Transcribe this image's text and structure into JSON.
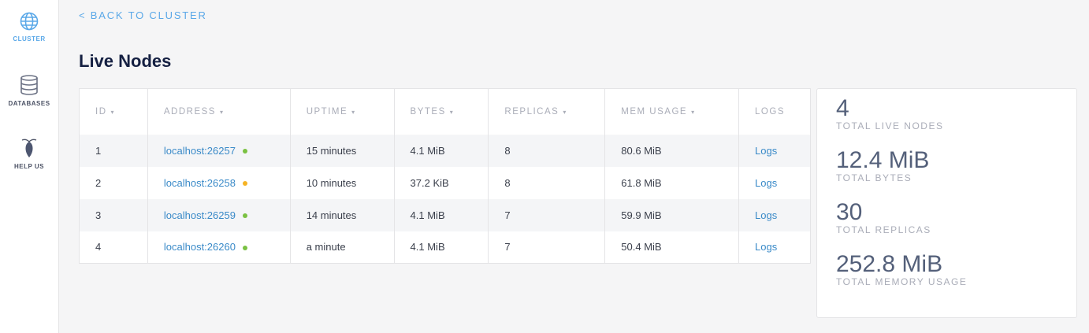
{
  "sidebar": {
    "items": [
      {
        "label": "CLUSTER",
        "icon": "globe-icon"
      },
      {
        "label": "DATABASES",
        "icon": "database-icon"
      },
      {
        "label": "HELP US",
        "icon": "cockroach-icon"
      }
    ]
  },
  "back_link": "< BACK TO CLUSTER",
  "title": "Live Nodes",
  "table": {
    "headers": [
      "ID",
      "ADDRESS",
      "UPTIME",
      "BYTES",
      "REPLICAS",
      "MEM USAGE",
      "LOGS"
    ],
    "sort_caret": "▾",
    "rows": [
      {
        "id": "1",
        "address": "localhost:26257",
        "status": "#7ac142",
        "uptime": "15 minutes",
        "bytes": "4.1 MiB",
        "replicas": "8",
        "mem": "80.6 MiB",
        "logs": "Logs"
      },
      {
        "id": "2",
        "address": "localhost:26258",
        "status": "#f5b324",
        "uptime": "10 minutes",
        "bytes": "37.2 KiB",
        "replicas": "8",
        "mem": "61.8 MiB",
        "logs": "Logs"
      },
      {
        "id": "3",
        "address": "localhost:26259",
        "status": "#7ac142",
        "uptime": "14 minutes",
        "bytes": "4.1 MiB",
        "replicas": "7",
        "mem": "59.9 MiB",
        "logs": "Logs"
      },
      {
        "id": "4",
        "address": "localhost:26260",
        "status": "#7ac142",
        "uptime": "a minute",
        "bytes": "4.1 MiB",
        "replicas": "7",
        "mem": "50.4 MiB",
        "logs": "Logs"
      }
    ]
  },
  "summary": [
    {
      "value": "4",
      "label": "TOTAL LIVE NODES"
    },
    {
      "value": "12.4 MiB",
      "label": "TOTAL BYTES"
    },
    {
      "value": "30",
      "label": "TOTAL REPLICAS"
    },
    {
      "value": "252.8 MiB",
      "label": "TOTAL MEMORY USAGE"
    }
  ]
}
